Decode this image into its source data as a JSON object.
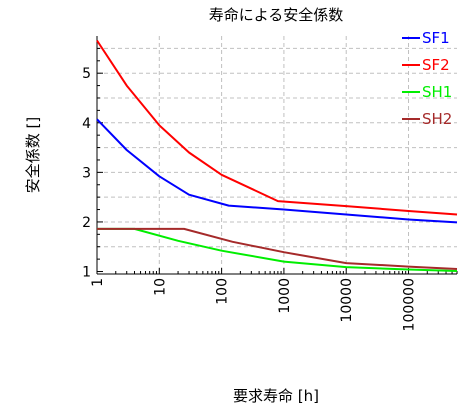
{
  "chart_data": {
    "type": "line",
    "title": "寿命による安全係数",
    "xlabel": "要求寿命 [h]",
    "ylabel": "安全係数 []",
    "x_scale": "log",
    "xlim": [
      1,
      600000
    ],
    "ylim": [
      0.95,
      5.75
    ],
    "x_ticks": [
      1,
      10,
      100,
      1000,
      10000,
      100000
    ],
    "x_tick_labels": [
      "1",
      "10",
      "100",
      "1000",
      "10000",
      "100000"
    ],
    "y_ticks": [
      1,
      2,
      3,
      4,
      5
    ],
    "y_tick_labels": [
      "1",
      "2",
      "3",
      "4",
      "5"
    ],
    "grid": true,
    "legend_position": "top-right",
    "series": [
      {
        "name": "SF1",
        "color": "#0000ff",
        "points": [
          [
            1,
            4.07
          ],
          [
            3,
            3.45
          ],
          [
            10,
            2.92
          ],
          [
            30,
            2.55
          ],
          [
            130,
            2.33
          ],
          [
            1000,
            2.25
          ],
          [
            10000,
            2.15
          ],
          [
            100000,
            2.05
          ],
          [
            600000,
            1.99
          ]
        ]
      },
      {
        "name": "SF2",
        "color": "#ff0000",
        "points": [
          [
            1,
            5.66
          ],
          [
            3,
            4.75
          ],
          [
            10,
            3.95
          ],
          [
            30,
            3.4
          ],
          [
            100,
            2.95
          ],
          [
            800,
            2.42
          ],
          [
            10000,
            2.32
          ],
          [
            100000,
            2.22
          ],
          [
            600000,
            2.15
          ]
        ]
      },
      {
        "name": "SH1",
        "color": "#00ee00",
        "points": [
          [
            1,
            1.86
          ],
          [
            4,
            1.86
          ],
          [
            20,
            1.62
          ],
          [
            100,
            1.42
          ],
          [
            1000,
            1.2
          ],
          [
            10000,
            1.09
          ],
          [
            100000,
            1.04
          ],
          [
            600000,
            1.01
          ]
        ]
      },
      {
        "name": "SH2",
        "color": "#a52a2a",
        "points": [
          [
            1,
            1.86
          ],
          [
            25,
            1.86
          ],
          [
            150,
            1.6
          ],
          [
            1000,
            1.39
          ],
          [
            10000,
            1.17
          ],
          [
            100000,
            1.1
          ],
          [
            600000,
            1.05
          ]
        ]
      }
    ]
  }
}
